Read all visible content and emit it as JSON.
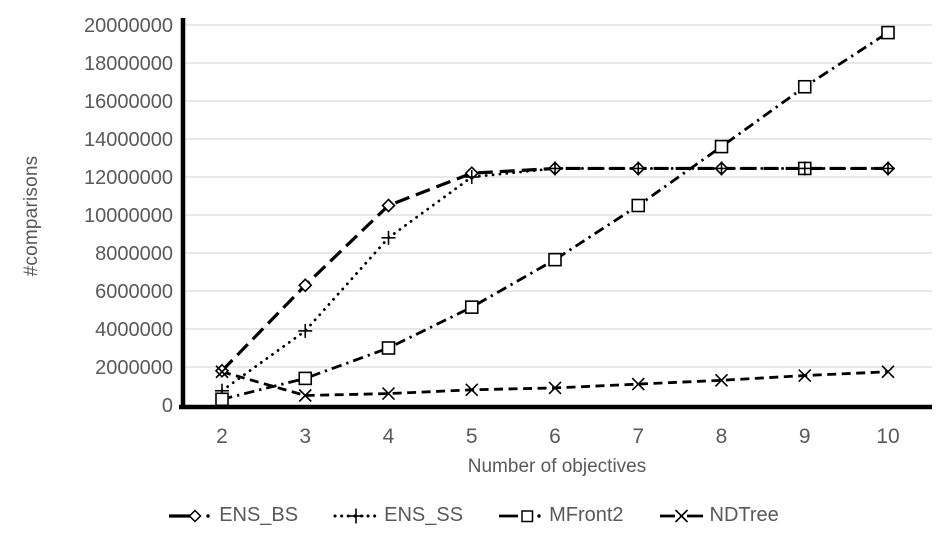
{
  "colors": {
    "series": "#000000",
    "axis_text": "#595959",
    "gridline": "#d9d9d9",
    "axis_line": "#000000",
    "background": "#ffffff"
  },
  "chart_data": {
    "type": "line",
    "title": "",
    "xlabel": "Number of objectives",
    "ylabel": "#comparisons",
    "x": [
      2,
      3,
      4,
      5,
      6,
      7,
      8,
      9,
      10
    ],
    "x_tick_labels": [
      "2",
      "3",
      "4",
      "5",
      "6",
      "7",
      "8",
      "9",
      "10"
    ],
    "y_tick_labels": [
      "0",
      "2000000",
      "4000000",
      "6000000",
      "8000000",
      "10000000",
      "12000000",
      "14000000",
      "16000000",
      "18000000",
      "20000000"
    ],
    "ylim": [
      0,
      20000000
    ],
    "y_tick_step": 2000000,
    "grid": "horizontal",
    "legend_position": "bottom",
    "series": [
      {
        "name": "ENS_BS",
        "marker": "diamond",
        "line_style": "long-dash",
        "values": [
          1800000,
          6300000,
          10500000,
          12200000,
          12450000,
          12450000,
          12450000,
          12450000,
          12450000
        ]
      },
      {
        "name": "ENS_SS",
        "marker": "plus",
        "line_style": "dot",
        "values": [
          750000,
          3900000,
          8800000,
          12000000,
          12450000,
          12450000,
          12450000,
          12450000,
          12450000
        ]
      },
      {
        "name": "MFront2",
        "marker": "square",
        "line_style": "dash-dot",
        "values": [
          300000,
          1400000,
          3000000,
          5150000,
          7650000,
          10500000,
          13600000,
          16750000,
          19600000
        ]
      },
      {
        "name": "NDTree",
        "marker": "x",
        "line_style": "dash",
        "values": [
          1750000,
          500000,
          600000,
          800000,
          900000,
          1100000,
          1300000,
          1550000,
          1750000
        ]
      }
    ],
    "extra_markers": [
      {
        "x": 9,
        "y": 12450000,
        "marker": "square"
      }
    ]
  }
}
